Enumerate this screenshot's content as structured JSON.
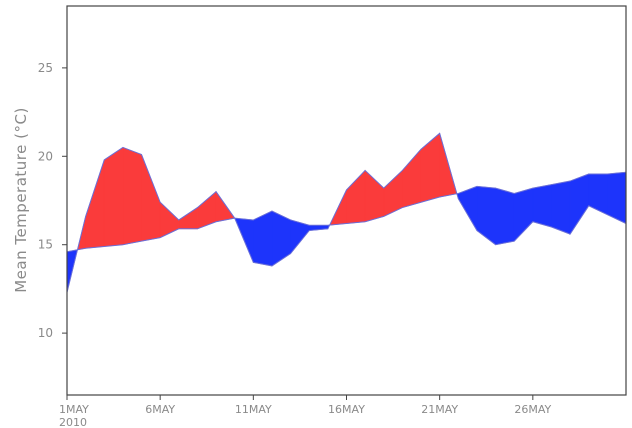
{
  "chart_data": {
    "type": "area",
    "title": "",
    "xlabel": "",
    "ylabel": "Mean Temperature (°C)",
    "xlim": [
      "2010-05-01",
      "2010-05-31"
    ],
    "ylim": [
      6.5,
      28.5
    ],
    "yticks": [
      10,
      15,
      20,
      25
    ],
    "xticks": [
      {
        "date": "2010-05-01",
        "label": "1MAY",
        "sublabel": "2010"
      },
      {
        "date": "2010-05-06",
        "label": "6MAY"
      },
      {
        "date": "2010-05-11",
        "label": "11MAY"
      },
      {
        "date": "2010-05-16",
        "label": "16MAY"
      },
      {
        "date": "2010-05-21",
        "label": "21MAY"
      },
      {
        "date": "2010-05-26",
        "label": "26MAY"
      }
    ],
    "x": [
      "2010-05-01",
      "2010-05-02",
      "2010-05-03",
      "2010-05-04",
      "2010-05-05",
      "2010-05-06",
      "2010-05-07",
      "2010-05-08",
      "2010-05-09",
      "2010-05-10",
      "2010-05-11",
      "2010-05-12",
      "2010-05-13",
      "2010-05-14",
      "2010-05-15",
      "2010-05-16",
      "2010-05-17",
      "2010-05-18",
      "2010-05-19",
      "2010-05-20",
      "2010-05-21",
      "2010-05-22",
      "2010-05-23",
      "2010-05-24",
      "2010-05-25",
      "2010-05-26",
      "2010-05-27",
      "2010-05-28",
      "2010-05-29",
      "2010-05-30",
      "2010-05-31"
    ],
    "series": [
      {
        "values": [
          12.3,
          16.6,
          19.8,
          20.5,
          20.1,
          17.4,
          16.4,
          17.1,
          18.0,
          16.5,
          14.0,
          13.8,
          14.5,
          15.8,
          15.9,
          18.1,
          19.2,
          18.2,
          19.2,
          20.4,
          21.3,
          17.6,
          15.8,
          15.0,
          15.2,
          16.3,
          16.0,
          15.6,
          17.2,
          16.7,
          16.2
        ]
      },
      {
        "values": [
          14.6,
          14.8,
          14.9,
          15.0,
          15.2,
          15.4,
          15.9,
          15.9,
          16.3,
          16.5,
          16.4,
          16.9,
          16.4,
          16.1,
          16.1,
          16.2,
          16.3,
          16.6,
          17.1,
          17.4,
          17.7,
          17.9,
          18.3,
          18.2,
          17.9,
          18.2,
          18.4,
          18.6,
          19.0,
          19.0,
          19.1
        ]
      }
    ],
    "above_color": "#fa3b3b",
    "below_color": "#1d34fb",
    "line_color": "#6a6fd8",
    "grid": false,
    "legend": "none"
  }
}
